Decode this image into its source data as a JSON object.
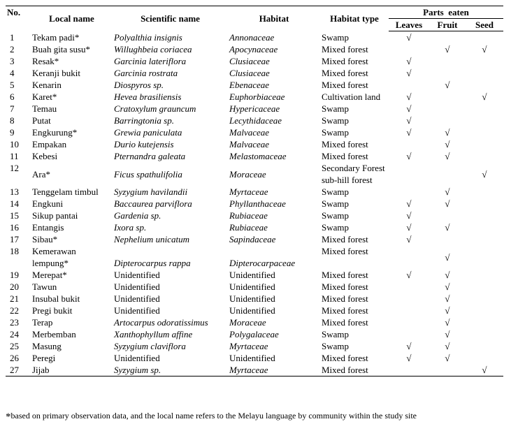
{
  "table": {
    "headers": {
      "no": "No.",
      "local_name": "Local name",
      "scientific_name": "Scientific name",
      "habitat": "Habitat",
      "habitat_type": "Habitat type",
      "parts_eaten": "Parts  eaten",
      "leaves": "Leaves",
      "fruit": "Fruit",
      "seed": "Seed"
    },
    "check_mark": "√",
    "rows": [
      {
        "no": "1",
        "local": "Tekam padi*",
        "sci": "Polyalthia insignis",
        "sci_italic": true,
        "fam": "Annonaceae",
        "fam_italic": true,
        "type": "Swamp",
        "leaves": true,
        "fruit": false,
        "seed": false
      },
      {
        "no": "2",
        "local": "Buah gita susu*",
        "sci": "Willughbeia coriacea",
        "sci_italic": true,
        "fam": "Apocynaceae",
        "fam_italic": true,
        "type": "Mixed forest",
        "leaves": false,
        "fruit": true,
        "seed": true
      },
      {
        "no": "3",
        "local": "Resak*",
        "sci": "Garcinia lateriflora",
        "sci_italic": true,
        "fam": "Clusiaceae",
        "fam_italic": true,
        "type": "Mixed forest",
        "leaves": true,
        "fruit": false,
        "seed": false
      },
      {
        "no": "4",
        "local": "Keranji bukit",
        "sci": "Garcinia rostrata",
        "sci_italic": true,
        "fam": "Clusiaceae",
        "fam_italic": true,
        "type": "Mixed forest",
        "leaves": true,
        "fruit": false,
        "seed": false
      },
      {
        "no": "5",
        "local": "Kenarin",
        "sci": "Diospyros sp.",
        "sci_italic": true,
        "fam": "Ebenaceae",
        "fam_italic": true,
        "type": "Mixed forest",
        "leaves": false,
        "fruit": true,
        "seed": false
      },
      {
        "no": "6",
        "local": "Karet*",
        "sci": "Hevea brasiliensis",
        "sci_italic": true,
        "fam": "Euphorbiaceae",
        "fam_italic": true,
        "type": "Cultivation land",
        "leaves": true,
        "fruit": false,
        "seed": true
      },
      {
        "no": "7",
        "local": "Temau",
        "sci": "Cratoxylum grauncum",
        "sci_italic": true,
        "fam": "Hypericaceae",
        "fam_italic": true,
        "type": "Swamp",
        "leaves": true,
        "fruit": false,
        "seed": false
      },
      {
        "no": "8",
        "local": "Putat",
        "sci": "Barringtonia sp.",
        "sci_italic": true,
        "fam": "Lecythidaceae",
        "fam_italic": true,
        "type": "Swamp",
        "leaves": true,
        "fruit": false,
        "seed": false
      },
      {
        "no": "9",
        "local": "Engkurung*",
        "sci": "Grewia paniculata",
        "sci_italic": true,
        "fam": "Malvaceae",
        "fam_italic": true,
        "type": "Swamp",
        "leaves": true,
        "fruit": true,
        "seed": false
      },
      {
        "no": "10",
        "local": "Empakan",
        "sci": "Durio kutejensis",
        "sci_italic": true,
        "fam": "Malvaceae",
        "fam_italic": true,
        "type": "Mixed forest",
        "leaves": false,
        "fruit": true,
        "seed": false
      },
      {
        "no": "11",
        "local": "Kebesi",
        "sci": "Pternandra galeata",
        "sci_italic": true,
        "fam": "Melastomaceae",
        "fam_italic": true,
        "type": "Mixed forest",
        "leaves": true,
        "fruit": true,
        "seed": false
      },
      {
        "no": "12",
        "local": "Ara*",
        "sci": "Ficus spathulifolia",
        "sci_italic": true,
        "fam": "Moraceae",
        "fam_italic": true,
        "type": "Secondary Forest sub-hill forest",
        "leaves": false,
        "fruit": false,
        "seed": true
      },
      {
        "no": "13",
        "local": "Tenggelam timbul",
        "sci": "Syzygium havilandii",
        "sci_italic": true,
        "fam": "Myrtaceae",
        "fam_italic": true,
        "type": "Swamp",
        "leaves": false,
        "fruit": true,
        "seed": false
      },
      {
        "no": "14",
        "local": "Engkuni",
        "sci": "Baccaurea parviflora",
        "sci_italic": true,
        "fam": "Phyllanthaceae",
        "fam_italic": true,
        "type": "Swamp",
        "leaves": true,
        "fruit": true,
        "seed": false
      },
      {
        "no": "15",
        "local": "Sikup pantai",
        "sci": "Gardenia sp.",
        "sci_italic": true,
        "fam": "Rubiaceae",
        "fam_italic": true,
        "type": "Swamp",
        "leaves": true,
        "fruit": false,
        "seed": false
      },
      {
        "no": "16",
        "local": "Entangis",
        "sci": "Ixora sp.",
        "sci_italic": true,
        "fam": "Rubiaceae",
        "fam_italic": true,
        "type": "Swamp",
        "leaves": true,
        "fruit": true,
        "seed": false
      },
      {
        "no": "17",
        "local": "Sibau*",
        "sci": "Nephelium unicatum",
        "sci_italic": true,
        "fam": "Sapindaceae",
        "fam_italic": true,
        "type": "Mixed forest",
        "leaves": true,
        "fruit": false,
        "seed": false
      },
      {
        "no": "18",
        "local": "Kemerawan lempung*",
        "sci": "Dipterocarpus rappa",
        "sci_italic": true,
        "fam": "Dipterocarpaceae",
        "fam_italic": true,
        "type": "Mixed forest",
        "leaves": false,
        "fruit": true,
        "seed": false
      },
      {
        "no": "19",
        "local": "Merepat*",
        "sci": "Unidentified",
        "sci_italic": false,
        "fam": "Unidentified",
        "fam_italic": false,
        "type": "Mixed forest",
        "leaves": true,
        "fruit": true,
        "seed": false
      },
      {
        "no": "20",
        "local": "Tawun",
        "sci": "Unidentified",
        "sci_italic": false,
        "fam": "Unidentified",
        "fam_italic": false,
        "type": "Mixed forest",
        "leaves": false,
        "fruit": true,
        "seed": false
      },
      {
        "no": "21",
        "local": "Insubal bukit",
        "sci": "Unidentified",
        "sci_italic": false,
        "fam": "Unidentified",
        "fam_italic": false,
        "type": "Mixed forest",
        "leaves": false,
        "fruit": true,
        "seed": false
      },
      {
        "no": "22",
        "local": "Pregi bukit",
        "sci": "Unidentified",
        "sci_italic": false,
        "fam": "Unidentified",
        "fam_italic": false,
        "type": "Mixed forest",
        "leaves": false,
        "fruit": true,
        "seed": false
      },
      {
        "no": "23",
        "local": "Terap",
        "sci": "Artocarpus odoratissimus",
        "sci_italic": true,
        "fam": "Moraceae",
        "fam_italic": true,
        "type": "Mixed forest",
        "leaves": false,
        "fruit": true,
        "seed": false
      },
      {
        "no": "24",
        "local": "Merbemban",
        "sci": "Xanthophyllum affine",
        "sci_italic": true,
        "fam": "Polygalaceae",
        "fam_italic": true,
        "type": "Swamp",
        "leaves": false,
        "fruit": true,
        "seed": false
      },
      {
        "no": "25",
        "local": "Masung",
        "sci": "Syzygium claviflora",
        "sci_italic": true,
        "fam": "Myrtaceae",
        "fam_italic": true,
        "type": "Swamp",
        "leaves": true,
        "fruit": true,
        "seed": false
      },
      {
        "no": "26",
        "local": "Peregi",
        "sci": "Unidentified",
        "sci_italic": false,
        "fam": "Unidentified",
        "fam_italic": false,
        "type": "Mixed forest",
        "leaves": true,
        "fruit": true,
        "seed": false
      },
      {
        "no": "27",
        "local": "Jijab",
        "sci": "Syzygium sp.",
        "sci_italic": true,
        "fam": "Myrtaceae",
        "fam_italic": true,
        "type": "Mixed forest",
        "leaves": false,
        "fruit": false,
        "seed": true
      }
    ]
  },
  "footnote": {
    "star": "*",
    "text": "based on primary observation data, and the local name refers to the Melayu language by community within the study site"
  }
}
